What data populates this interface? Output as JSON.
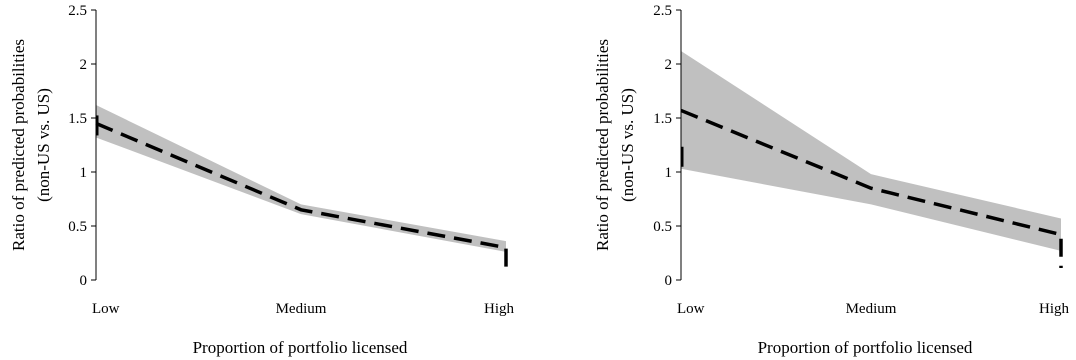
{
  "chart_data": [
    {
      "type": "line",
      "categories": [
        "Low",
        "Medium",
        "High"
      ],
      "xlabel": "Proportion of portfolio licensed",
      "ylabel_line1": "Ratio of predicted probabilities",
      "ylabel_line2": "(non-US vs. US)",
      "ylim": [
        0,
        2.5
      ],
      "yticks": [
        "0",
        "0.5",
        "1",
        "1.5",
        "2",
        "2.5"
      ],
      "series": [
        {
          "values": [
            1.45,
            0.65,
            0.3
          ],
          "lower": [
            1.32,
            0.61,
            0.26
          ],
          "upper": [
            1.62,
            0.7,
            0.36
          ]
        }
      ],
      "colors": {
        "band": "#c0c0c0",
        "line": "#000000"
      }
    },
    {
      "type": "line",
      "categories": [
        "Low",
        "Medium",
        "High"
      ],
      "xlabel": "Proportion of portfolio licensed",
      "ylabel_line1": "Ratio of predicted probabilities",
      "ylabel_line2": "(non-US vs. US)",
      "ylim": [
        0,
        2.5
      ],
      "yticks": [
        "0",
        "0.5",
        "1",
        "1.5",
        "2",
        "2.5"
      ],
      "series": [
        {
          "values": [
            1.57,
            0.85,
            0.42
          ],
          "lower": [
            1.03,
            0.7,
            0.27
          ],
          "upper": [
            2.12,
            0.98,
            0.57
          ]
        }
      ],
      "colors": {
        "band": "#c0c0c0",
        "line": "#000000"
      }
    }
  ]
}
